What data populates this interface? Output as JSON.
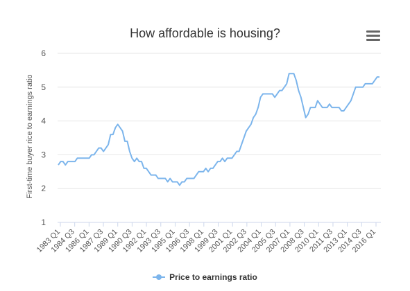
{
  "chart_data": {
    "type": "line",
    "title": "How affordable is housing?",
    "ylabel": "First-time buyer rice to earnings ratio",
    "xlabel": "",
    "ylim": [
      1,
      6
    ],
    "yticks": [
      1,
      2,
      3,
      4,
      5,
      6
    ],
    "x_tick_labels": [
      "1983 Q1",
      "1984 Q3",
      "1986 Q1",
      "1987 Q3",
      "1989 Q1",
      "1990 Q3",
      "1992 Q1",
      "1993 Q3",
      "1995 Q1",
      "1996 Q3",
      "1998 Q1",
      "1999 Q3",
      "2001 Q1",
      "2002 Q3",
      "2004 Q1",
      "2005 Q3",
      "2007 Q1",
      "2008 Q3",
      "2010 Q1",
      "2011 Q3",
      "2013 Q1",
      "2014 Q3",
      "2016 Q1"
    ],
    "legend_position": "bottom-center",
    "grid": true,
    "series": [
      {
        "name": "Price to earnings ratio",
        "color": "#7cb5ec",
        "values": [
          2.7,
          2.8,
          2.8,
          2.7,
          2.8,
          2.8,
          2.8,
          2.8,
          2.9,
          2.9,
          2.9,
          2.9,
          2.9,
          2.9,
          3.0,
          3.0,
          3.1,
          3.2,
          3.2,
          3.1,
          3.2,
          3.3,
          3.6,
          3.6,
          3.8,
          3.9,
          3.8,
          3.7,
          3.4,
          3.4,
          3.1,
          2.9,
          2.8,
          2.9,
          2.8,
          2.8,
          2.6,
          2.6,
          2.5,
          2.4,
          2.4,
          2.4,
          2.3,
          2.3,
          2.3,
          2.3,
          2.2,
          2.3,
          2.2,
          2.2,
          2.2,
          2.1,
          2.2,
          2.2,
          2.3,
          2.3,
          2.3,
          2.3,
          2.4,
          2.5,
          2.5,
          2.5,
          2.6,
          2.5,
          2.6,
          2.6,
          2.7,
          2.8,
          2.8,
          2.9,
          2.8,
          2.9,
          2.9,
          2.9,
          3.0,
          3.1,
          3.1,
          3.3,
          3.5,
          3.7,
          3.8,
          3.9,
          4.1,
          4.2,
          4.4,
          4.7,
          4.8,
          4.8,
          4.8,
          4.8,
          4.8,
          4.7,
          4.8,
          4.9,
          4.9,
          5.0,
          5.1,
          5.4,
          5.4,
          5.4,
          5.2,
          4.9,
          4.7,
          4.4,
          4.1,
          4.2,
          4.4,
          4.4,
          4.4,
          4.6,
          4.5,
          4.4,
          4.4,
          4.4,
          4.5,
          4.4,
          4.4,
          4.4,
          4.4,
          4.3,
          4.3,
          4.4,
          4.5,
          4.6,
          4.8,
          5.0,
          5.0,
          5.0,
          5.0,
          5.1,
          5.1,
          5.1,
          5.1,
          5.2,
          5.3,
          5.3
        ]
      }
    ]
  },
  "legend": {
    "label": "Price to earnings ratio"
  }
}
